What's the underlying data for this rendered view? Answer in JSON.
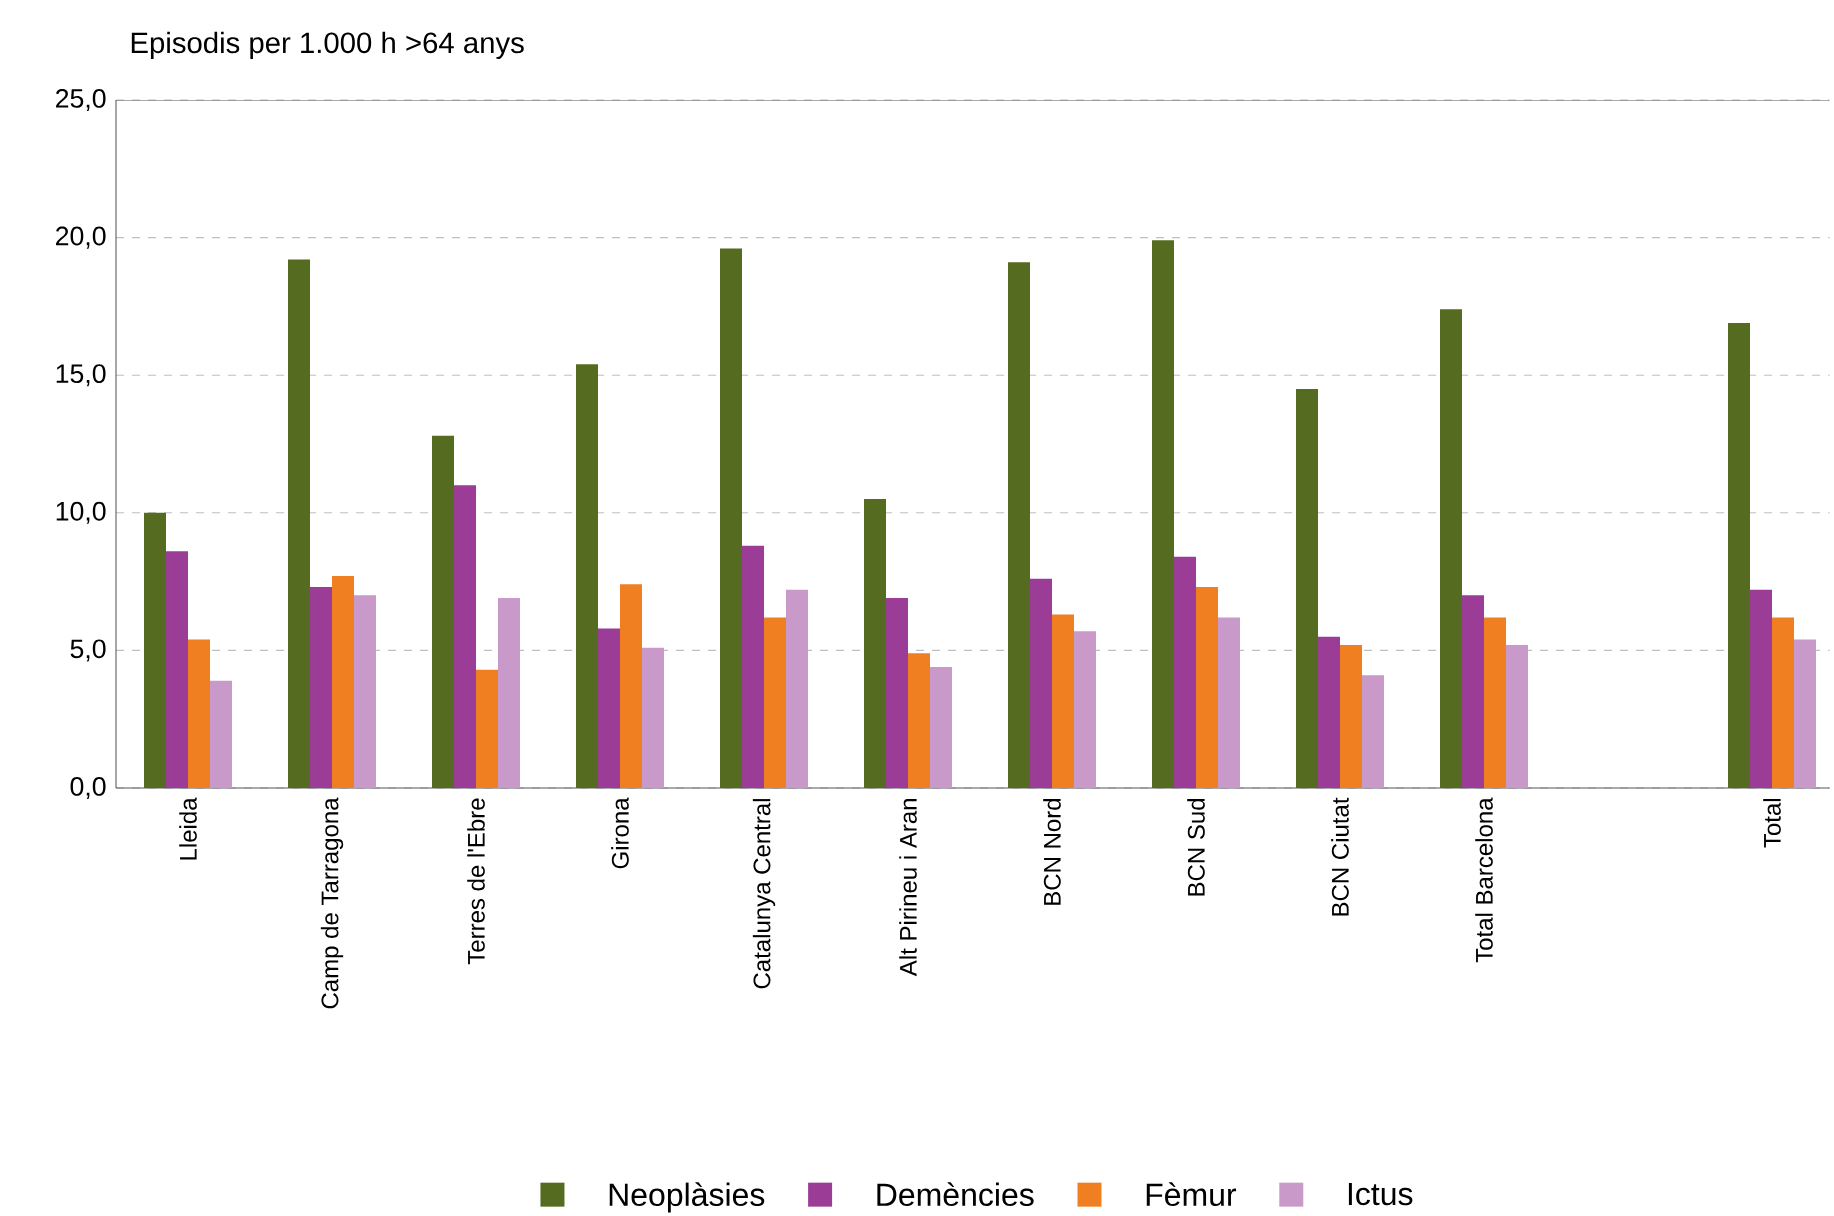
{
  "chart_data": {
    "type": "bar",
    "ylabel": "Episodis per 1.000 h >64 anys",
    "categories": [
      "Lleida",
      "Camp de Tarragona",
      "Terres de l'Ebre",
      "Girona",
      "Catalunya Central",
      "Alt Pirineu i Aran",
      "BCN Nord",
      "BCN Sud",
      "BCN Ciutat",
      "Total Barcelona",
      null,
      "Total"
    ],
    "series": [
      {
        "name": "Neoplàsies",
        "color": "#556b1f",
        "values": [
          10.0,
          19.2,
          12.8,
          15.4,
          19.6,
          10.5,
          19.1,
          19.9,
          14.5,
          17.4,
          null,
          16.9
        ]
      },
      {
        "name": "Demències",
        "color": "#9b3d96",
        "values": [
          8.6,
          7.3,
          11.0,
          5.8,
          8.8,
          6.9,
          7.6,
          8.4,
          5.5,
          7.0,
          null,
          7.2
        ]
      },
      {
        "name": "Fèmur",
        "color": "#f07f22",
        "values": [
          5.4,
          7.7,
          4.3,
          7.4,
          6.2,
          4.9,
          6.3,
          7.3,
          5.2,
          6.2,
          null,
          6.2
        ]
      },
      {
        "name": "Ictus",
        "color": "#c99ac9",
        "values": [
          3.9,
          7.0,
          6.9,
          5.1,
          7.2,
          4.4,
          5.7,
          6.2,
          4.1,
          5.2,
          null,
          5.4
        ]
      }
    ],
    "ylim": [
      0,
      25
    ],
    "yticks": [
      {
        "value": 0,
        "label": "0,0"
      },
      {
        "value": 5,
        "label": "5,0"
      },
      {
        "value": 10,
        "label": "10,0"
      },
      {
        "value": 15,
        "label": "15,0"
      },
      {
        "value": 20,
        "label": "20,0"
      },
      {
        "value": 25,
        "label": "25,0"
      }
    ],
    "grid": "y",
    "legend": "bottom"
  }
}
